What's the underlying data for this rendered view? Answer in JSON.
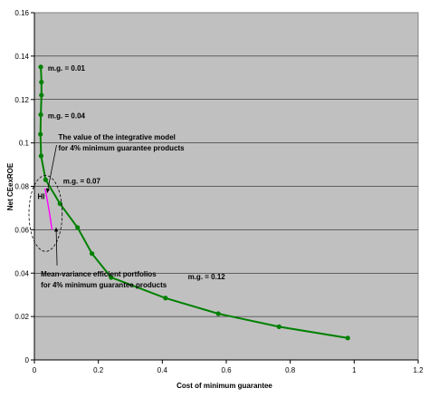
{
  "chart_data": {
    "type": "line",
    "xlabel": "Cost of minimum guarantee",
    "ylabel": "Net CEexROE",
    "xlim": [
      0,
      1.2
    ],
    "ylim": [
      0,
      0.16
    ],
    "xticks": [
      0,
      0.2,
      0.4,
      0.6,
      0.8,
      1,
      1.2
    ],
    "yticks": [
      0,
      0.02,
      0.04,
      0.06,
      0.08,
      0.1,
      0.12,
      0.14,
      0.16
    ],
    "xtick_labels": [
      "0",
      "0.2",
      "0.4",
      "0.6",
      "0.8",
      "1",
      "1.2"
    ],
    "ytick_labels": [
      "0",
      "0.02",
      "0.04",
      "0.06",
      "0.08",
      "0.1",
      "0.12",
      "0.14",
      "0.16"
    ],
    "grid": "horizontal",
    "background": "#c0c0c0",
    "series": [
      {
        "color": "#008000",
        "x": [
          0.02,
          0.022,
          0.022,
          0.02,
          0.019,
          0.021,
          0.035,
          0.08,
          0.135,
          0.18,
          0.24,
          0.41,
          0.575,
          0.765,
          0.98
        ],
        "y": [
          0.135,
          0.128,
          0.122,
          0.113,
          0.104,
          0.094,
          0.083,
          0.072,
          0.061,
          0.049,
          0.038,
          0.0285,
          0.0213,
          0.0153,
          0.0101
        ]
      },
      {
        "color": "#ff00ff",
        "x": [
          0.033,
          0.04,
          0.048,
          0.055
        ],
        "y": [
          0.079,
          0.074,
          0.067,
          0.06
        ]
      }
    ],
    "annotations": [
      {
        "text": "m.g. = 0.01",
        "x": 0.042,
        "y": 0.1345
      },
      {
        "text": "m.g. = 0.04",
        "x": 0.042,
        "y": 0.1125
      },
      {
        "text": "m.g. = 0.07",
        "x": 0.09,
        "y": 0.0825
      },
      {
        "text": "m.g. = 0.12",
        "x": 0.48,
        "y": 0.0385
      },
      {
        "text": "HI",
        "x": 0.01,
        "y": 0.0755
      }
    ],
    "callouts": [
      {
        "lines": [
          "The value of the integrative model",
          "for 4% minimum guarantee products"
        ],
        "x": 0.075,
        "y": 0.1015,
        "arrow_to": [
          0.04,
          0.077
        ]
      },
      {
        "lines": [
          "Mean-variance efficient portfolios",
          "for 4% minimum guarantee products"
        ],
        "x": 0.02,
        "y": 0.0385,
        "arrow_to": [
          0.068,
          0.061
        ]
      }
    ],
    "ellipse": {
      "cx": 0.035,
      "cy": 0.0675,
      "rx": 0.052,
      "ry": 0.0175
    }
  }
}
